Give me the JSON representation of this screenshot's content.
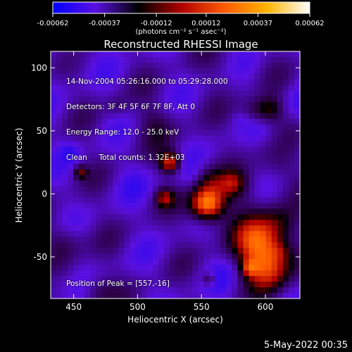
{
  "chart_data": {
    "type": "heatmap",
    "title": "Reconstructed RHESSI Image",
    "xlabel": "Heliocentric X (arcsec)",
    "ylabel": "Heliocentric Y (arcsec)",
    "xlim": [
      432,
      627
    ],
    "ylim": [
      -83,
      113
    ],
    "xticks": [
      450,
      500,
      550,
      600
    ],
    "yticks": [
      -50,
      0,
      50,
      100
    ],
    "colorbar": {
      "ticks": [
        "-0.00062",
        "-0.00037",
        "-0.00012",
        "0.00012",
        "0.00037",
        "0.00062"
      ],
      "range": [
        -0.00062,
        0.00062
      ],
      "unit": "(photons cm⁻² s⁻¹ asec⁻²)",
      "colors": [
        "#0000ff",
        "#5a10e0",
        "#000000",
        "#b00000",
        "#ff5a00",
        "#ffb400",
        "#ffffff"
      ]
    },
    "info_lines": [
      "14-Nov-2004 05:26:16.000 to 05:29:28.000",
      "Detectors: 3F 4F 5F 6F 7F 8F, Att 0",
      "Energy Range: 12.0 - 25.0 keV",
      "Clean     Total counts: 1.32E+03"
    ],
    "peak": {
      "label": "Position of Peak = [557,-16]",
      "x": 557,
      "y": -16
    }
  },
  "timestamp": "5-May-2022 00:35"
}
